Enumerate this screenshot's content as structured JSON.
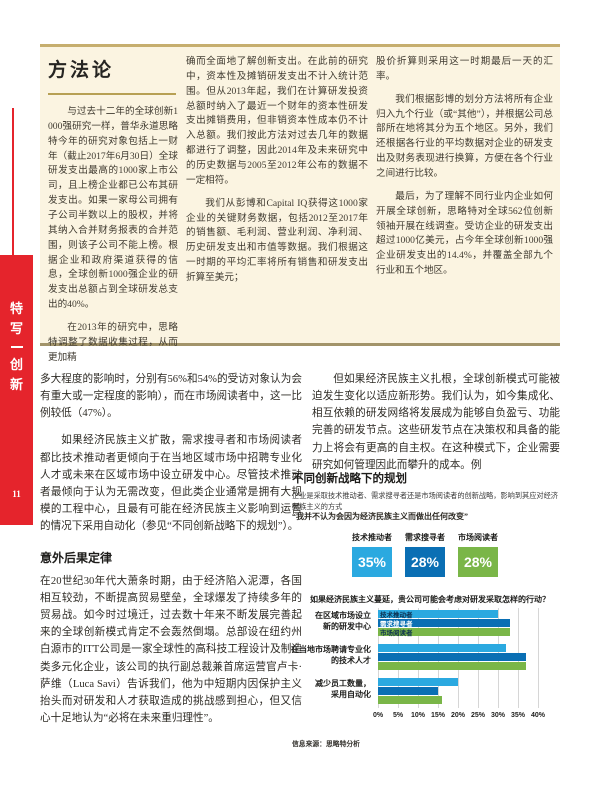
{
  "page": {
    "tab_line1": "特写",
    "tab_line2": "创新",
    "number": "11"
  },
  "colors": {
    "accent_red": "#e5242c",
    "box_beige": "#fbf4e1",
    "box_border_gold": "#c6ae6e",
    "light_blue": "#2ba9e0",
    "dark_blue": "#0a6fb4",
    "green": "#7ab648"
  },
  "methodology": {
    "title": "方法论",
    "col1_p1": "与过去十二年的全球创新1000强研究一样，普华永道思略特今年的研究对象包括上一财年（截止2017年6月30日）全球研发支出最高的1000家上市公司，且上榜企业都已公布其研发支出。如果一家母公司拥有子公司半数以上的股权，并将其纳入合并财务报表的合并范围，则该子公司不能上榜。根据企业和政府渠道获得的信息，全球创新1000强企业的研发支出总额占到全球研发总支出的40%。",
    "col1_p2": "在2013年的研究中，思略特调整了数据收集过程，从而更加精",
    "col2_p1": "确而全面地了解创新支出。在此前的研究中，资本性及摊销研发支出不计入统计范围。但从2013年起，我们在计算研发投资总额时纳入了最近一个财年的资本性研发支出摊销费用，但非销资本性成本仍不计入总额。我们按此方法对过去几年的数据都进行了调整，因此2014年及未来研究中的历史数据与2005至2012年公布的数据不一定相符。",
    "col2_p2": "我们从彭博和Capital IQ获得这1000家企业的关键财务数据，包括2012至2017年的销售额、毛利润、营业利润、净利润、历史研发支出和市值等数据。我们根据这一时期的平均汇率将所有销售和研发支出折算至美元；",
    "col3_p1": "股价折算则采用这一时期最后一天的汇率。",
    "col3_p2": "我们根据彭博的划分方法将所有企业归入九个行业（或“其他”），并根据公司总部所在地将其分为五个地区。另外，我们还根据各行业的平均数据对企业的研发支出及财务表现进行换算，方便在各个行业之间进行比较。",
    "col3_p3": "最后，为了理解不同行业内企业如何开展全球创新，思略特对全球562位创新领袖开展在线调查。受访企业的研发支出超过1000亿美元，占今年全球创新1000强企业研发支出的14.4%，并覆盖全部九个行业和五个地区。"
  },
  "body": {
    "left_p1": "多大程度的影响时，分别有56%和54%的受访对象认为会有重大或一定程度的影响），而在市场阅读者中，这一比例较低（47%）。",
    "left_p2": "如果经济民族主义扩散，需求搜寻者和市场阅读者都比技术推动者更倾向于在当地区域市场中招聘专业化人才或未来在区域市场中设立研发中心。尽管技术推动者最倾向于认为无需改变，但此类企业通常是拥有大规模的工程中心，且最有可能在经济民族主义影响到运营的情况下采用自动化（参见“不同创新战略下的规划”）。",
    "left_heading": "意外后果定律",
    "left_p3": "在20世纪30年代大萧条时期，由于经济陷入泥潭，各国相互较劲，不断提高贸易壁垒，全球爆发了持续多年的贸易战。如今时过境迁，过去数十年来不断发展完善起来的全球创新模式肯定不会轰然倒塌。总部设在纽约州白源市的ITT公司是一家全球性的高科技工程设计及制造类多元化企业，该公司的执行副总裁兼首席运营官卢卡·萨维（Luca Savi）告诉我们，他为中短期内因保护主义抬头而对研发和人才获取造成的挑战感到担心，但又信心十足地认为“必将在未来重归理性”。",
    "right_p1": "但如果经济民族主义扎根，全球创新模式可能被迫发生变化以适应新形势。我们认为，如今集成化、相互依赖的研发网络将发展成为能够自负盈亏、功能完善的研发节点。这些研发节点在决策权和具备的能力上将会有更高的自主权。在这种模式下，企业需要研究如何管理因此而攀升的成本。例"
  },
  "sidebar_chart": {
    "heading": "不同创新战略下的规划",
    "subtitle": "企业是采取技术推动者、需求搜寻者还是市场阅读者的创新战略，影响到其应对经济民族主义的方式",
    "quote": "“我并不认为会因为经济民族主义而做出任何改变”",
    "stats": [
      {
        "label": "技术推动者",
        "value": "35%",
        "color": "#2ba9e0"
      },
      {
        "label": "需求搜寻者",
        "value": "28%",
        "color": "#0a6fb4"
      },
      {
        "label": "市场阅读者",
        "value": "28%",
        "color": "#7ab648"
      }
    ],
    "question": "如果经济民族主义蔓延，贵公司可能会考虑对研发采取怎样的行动？",
    "chart_data": {
      "type": "bar",
      "orientation": "horizontal",
      "categories": [
        "在区域市场设立\n新的研发中心",
        "在当地市场聘请专业化\n的技术人才",
        "减少员工数量，\n采用自动化"
      ],
      "series": [
        {
          "name": "技术推动者",
          "color": "#2ba9e0",
          "values": [
            30,
            32,
            20
          ]
        },
        {
          "name": "需求搜寻者",
          "color": "#0a6fb4",
          "values": [
            33,
            37,
            15
          ]
        },
        {
          "name": "市场阅读者",
          "color": "#7ab648",
          "values": [
            33,
            37,
            16
          ]
        }
      ],
      "xlim": [
        0,
        40
      ],
      "tick_step": 5,
      "tick_suffix": "%",
      "grid": true,
      "legend_position": "inside-first-group"
    },
    "source": "信息来源：思略特分析"
  }
}
